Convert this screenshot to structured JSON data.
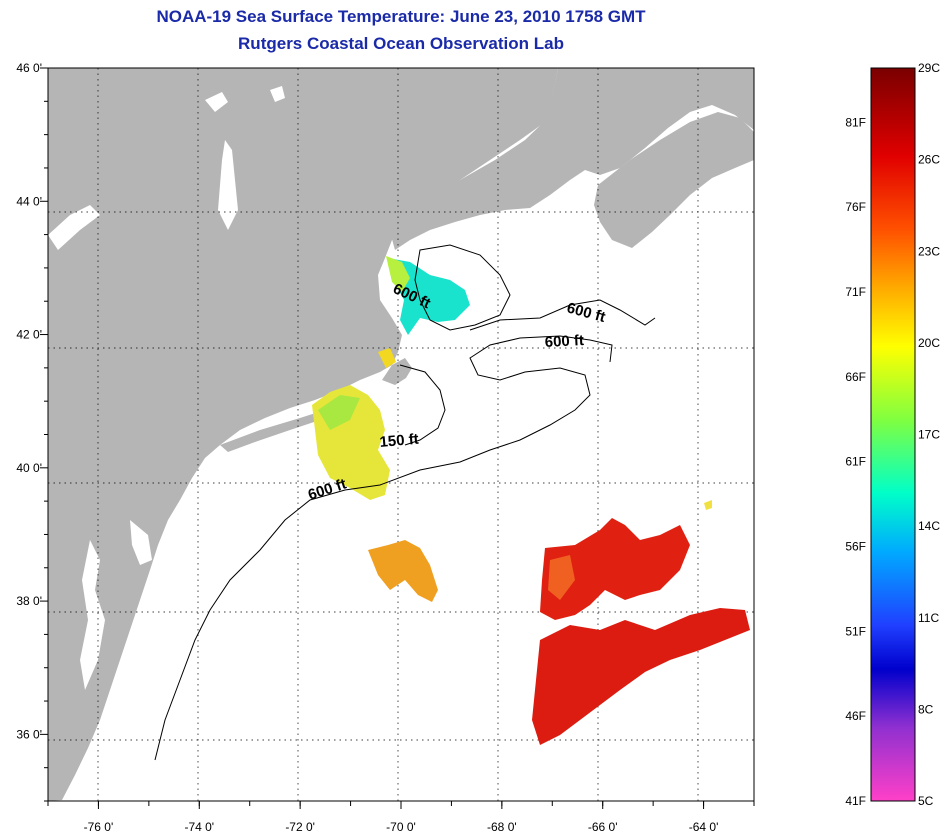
{
  "title": {
    "line1": "NOAA-19 Sea Surface Temperature:  June 23, 2010 1758 GMT",
    "line2": "Rutgers Coastal Ocean Observation Lab"
  },
  "map": {
    "lon_range": [
      -77,
      -63
    ],
    "lat_range": [
      35,
      46
    ],
    "lon_ticks": [
      {
        "value": -76,
        "label": "-76 0'"
      },
      {
        "value": -74,
        "label": "-74 0'"
      },
      {
        "value": -72,
        "label": "-72 0'"
      },
      {
        "value": -70,
        "label": "-70 0'"
      },
      {
        "value": -68,
        "label": "-68 0'"
      },
      {
        "value": -66,
        "label": "-66 0'"
      },
      {
        "value": -64,
        "label": "-64 0'"
      }
    ],
    "lat_ticks": [
      {
        "value": 46,
        "label": "46 0'"
      },
      {
        "value": 44,
        "label": "44 0'"
      },
      {
        "value": 42,
        "label": "42 0'"
      },
      {
        "value": 40,
        "label": "40 0'"
      },
      {
        "value": 38,
        "label": "38 0'"
      },
      {
        "value": 36,
        "label": "36 0'"
      }
    ],
    "land_color": "#b5b5b5",
    "grid": true,
    "contour_labels": [
      "600 ft",
      "600 ft",
      "600 ft",
      "150 ft",
      "600 ft"
    ]
  },
  "colorbar": {
    "celsius_labels": [
      "29C",
      "26C",
      "23C",
      "20C",
      "17C",
      "14C",
      "11C",
      "8C",
      "5C"
    ],
    "fahrenheit_labels": [
      "81F",
      "76F",
      "71F",
      "66F",
      "61F",
      "56F",
      "51F",
      "46F",
      "41F"
    ],
    "range_c": [
      5,
      29
    ]
  }
}
